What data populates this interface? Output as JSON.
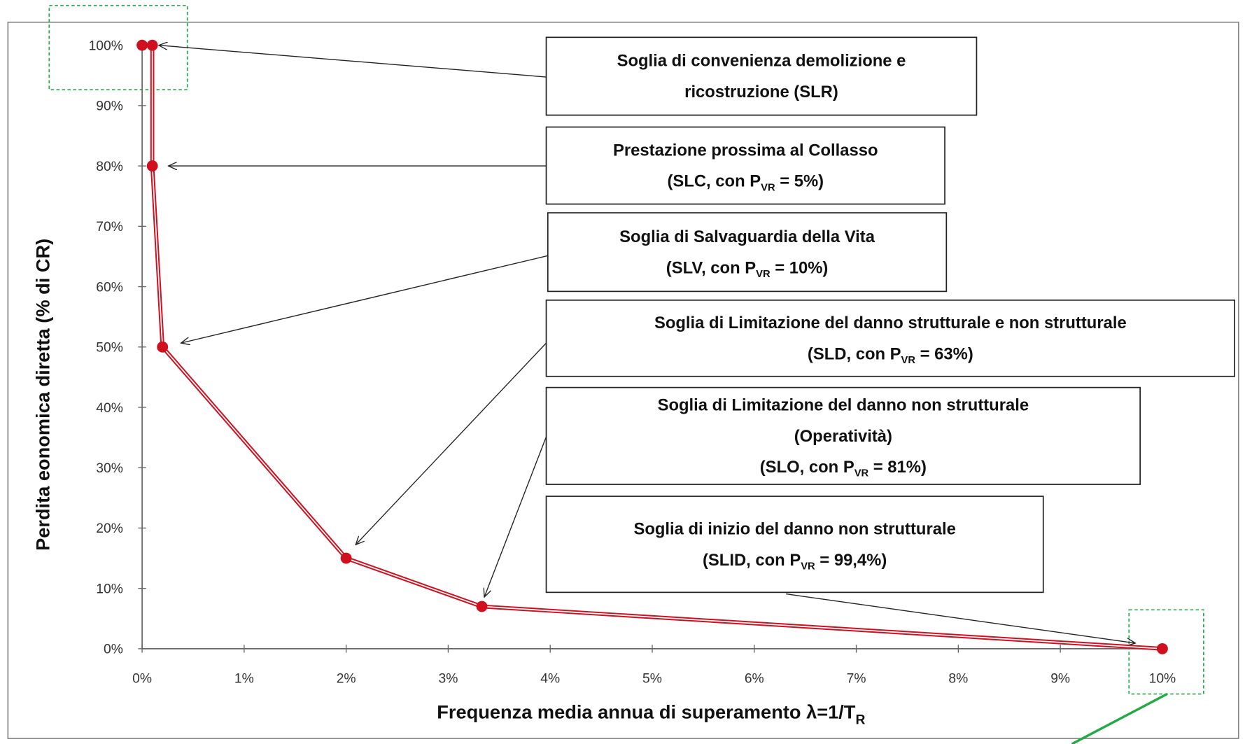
{
  "chart_data": {
    "type": "line",
    "y_label": "Perdita eonomica diretta (% di CR)",
    "x_label": [
      "Frequenza media annua di superamento λ=1/T",
      "R"
    ],
    "x": [
      0,
      0.1,
      0.1,
      0.2,
      2.0,
      3.33,
      10
    ],
    "series": [
      {
        "color": "#d0101e",
        "values": [
          100,
          100,
          80,
          50,
          15,
          7,
          0
        ]
      }
    ],
    "xlim": [
      0,
      10
    ],
    "ylim": [
      0,
      100
    ],
    "xticks": [
      {
        "value": 0,
        "label": "0%"
      },
      {
        "value": 1,
        "label": "1%"
      },
      {
        "value": 2,
        "label": "2%"
      },
      {
        "value": 3,
        "label": "3%"
      },
      {
        "value": 4,
        "label": "4%"
      },
      {
        "value": 5,
        "label": "5%"
      },
      {
        "value": 6,
        "label": "6%"
      },
      {
        "value": 7,
        "label": "7%"
      },
      {
        "value": 8,
        "label": "8%"
      },
      {
        "value": 9,
        "label": "9%"
      },
      {
        "value": 10,
        "label": "10%"
      }
    ],
    "yticks": [
      {
        "value": 0,
        "label": "0%"
      },
      {
        "value": 10,
        "label": "10%"
      },
      {
        "value": 20,
        "label": "20%"
      },
      {
        "value": 30,
        "label": "30%"
      },
      {
        "value": 40,
        "label": "40%"
      },
      {
        "value": 50,
        "label": "50%"
      },
      {
        "value": 60,
        "label": "60%"
      },
      {
        "value": 70,
        "label": "70%"
      },
      {
        "value": 80,
        "label": "80%"
      },
      {
        "value": 90,
        "label": "90%"
      },
      {
        "value": 100,
        "label": "100%"
      }
    ],
    "annotations": [
      {
        "lines": [
          [
            "Soglia di convenienza demolizione e"
          ],
          [
            "ricostruzione (SLR)"
          ]
        ]
      },
      {
        "lines": [
          [
            "Prestazione prossima al Collasso"
          ],
          [
            "(SLC, con P",
            "VR",
            " = 5%)"
          ]
        ]
      },
      {
        "lines": [
          [
            "Soglia di Salvaguardia della Vita"
          ],
          [
            "(SLV, con P",
            "VR",
            " = 10%)"
          ]
        ]
      },
      {
        "lines": [
          [
            "Soglia di Limitazione del danno strutturale e non strutturale"
          ],
          [
            "(SLD, con P",
            "VR",
            " = 63%)"
          ]
        ]
      },
      {
        "lines": [
          [
            "Soglia di Limitazione del danno non strutturale"
          ],
          [
            "(Operatività)"
          ],
          [
            "(SLO, con P",
            "VR",
            " = 81%)"
          ]
        ]
      },
      {
        "lines": [
          [
            "Soglia di inizio del danno non strutturale"
          ],
          [
            "(SLID, con P",
            "VR",
            " = 99,4%)"
          ]
        ]
      }
    ]
  }
}
